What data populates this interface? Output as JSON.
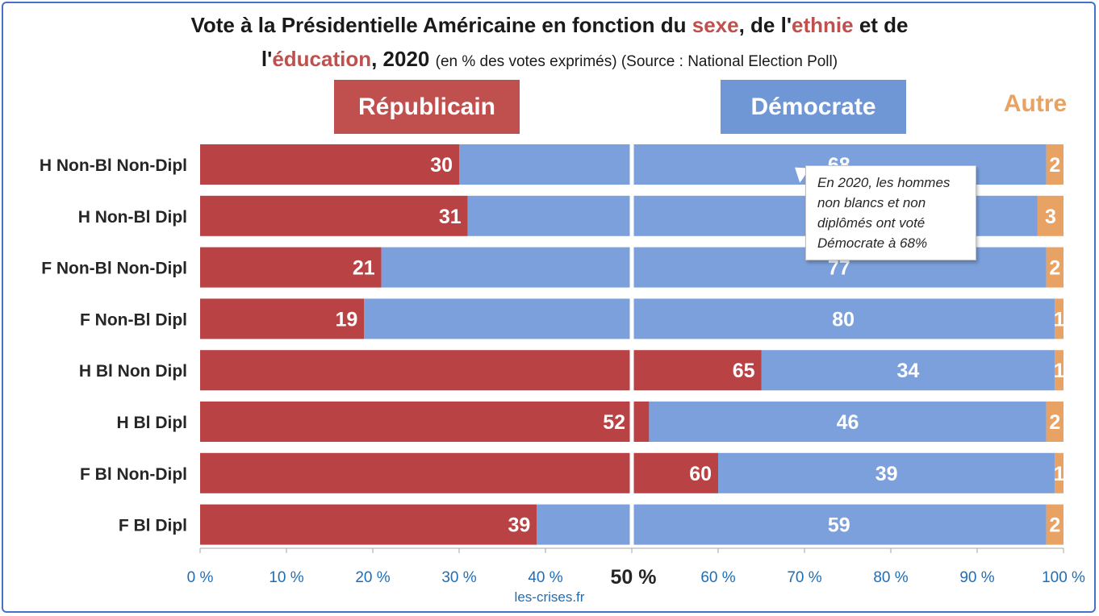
{
  "title": {
    "line1_part1": "Vote à la Présidentielle Américaine en fonction du ",
    "line1_sexe": "sexe",
    "line1_part2": ", de l'",
    "line1_ethnie": "ethnie",
    "line1_part3": " et de",
    "line2_prefix": "l'",
    "line2_education": "éducation",
    "line2_year": ", 2020",
    "line2_note": "(en % des votes exprimés) (Source : National Election Poll)"
  },
  "headers": {
    "republicain": "Républicain",
    "democrate": "Démocrate",
    "autre": "Autre"
  },
  "callout": {
    "text": "En 2020, les hommes non blancs et non diplômés ont voté Démocrate à 68%"
  },
  "source": "les-crises.fr",
  "colors": {
    "republicain": "#b94244",
    "democrate": "#7ba0dc",
    "autre": "#e8a264",
    "accent_title": "#c0504d",
    "axis_text": "#1f6db5"
  },
  "chart_data": {
    "type": "bar",
    "orientation": "horizontal-stacked-100",
    "categories": [
      "H Non-Bl Non-Dipl",
      "H Non-Bl Dipl",
      "F Non-Bl Non-Dipl",
      "F Non-Bl Dipl",
      "H Bl Non Dipl",
      "H Bl Dipl",
      "F Bl Non-Dipl",
      "F Bl Dipl"
    ],
    "series": [
      {
        "name": "Républicain",
        "values": [
          30,
          31,
          21,
          19,
          65,
          52,
          60,
          39
        ]
      },
      {
        "name": "Démocrate",
        "values": [
          68,
          66,
          77,
          80,
          34,
          46,
          39,
          59
        ]
      },
      {
        "name": "Autre",
        "values": [
          2,
          3,
          2,
          1,
          1,
          2,
          1,
          2
        ]
      }
    ],
    "xlim": [
      0,
      100
    ],
    "xticks": [
      "0 %",
      "10 %",
      "20 %",
      "30 %",
      "40 %",
      "50 %",
      "60 %",
      "70 %",
      "80 %",
      "90 %",
      "100 %"
    ],
    "midline_label": "50 %",
    "midline_value": 50
  }
}
